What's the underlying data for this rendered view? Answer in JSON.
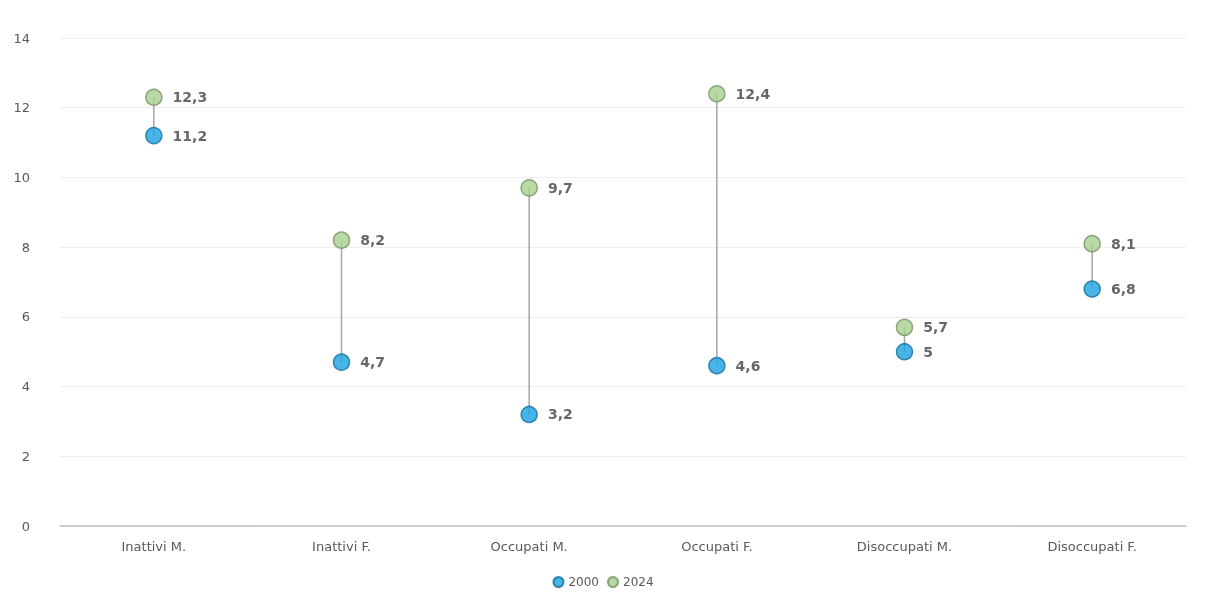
{
  "chart_data": {
    "type": "scatter",
    "categories": [
      "Inattivi M.",
      "Inattivi F.",
      "Occupati M.",
      "Occupati F.",
      "Disoccupati M.",
      "Disoccupati F."
    ],
    "series": [
      {
        "name": "2000",
        "color": "#1ba1e2",
        "values": [
          11.2,
          4.7,
          3.2,
          4.6,
          5,
          6.8
        ],
        "value_labels": [
          "11,2",
          "4,7",
          "3,2",
          "4,6",
          "5",
          "6,8"
        ]
      },
      {
        "name": "2024",
        "color": "#a9d18e",
        "values": [
          12.3,
          8.2,
          9.7,
          12.4,
          5.7,
          8.1
        ],
        "value_labels": [
          "12,3",
          "8,2",
          "9,7",
          "12,4",
          "5,7",
          "8,1"
        ]
      }
    ],
    "ylim": [
      0,
      14
    ],
    "yticks": [
      0,
      2,
      4,
      6,
      8,
      10,
      12,
      14
    ],
    "grid": "y",
    "legend": "bottom",
    "marker": "circle"
  }
}
